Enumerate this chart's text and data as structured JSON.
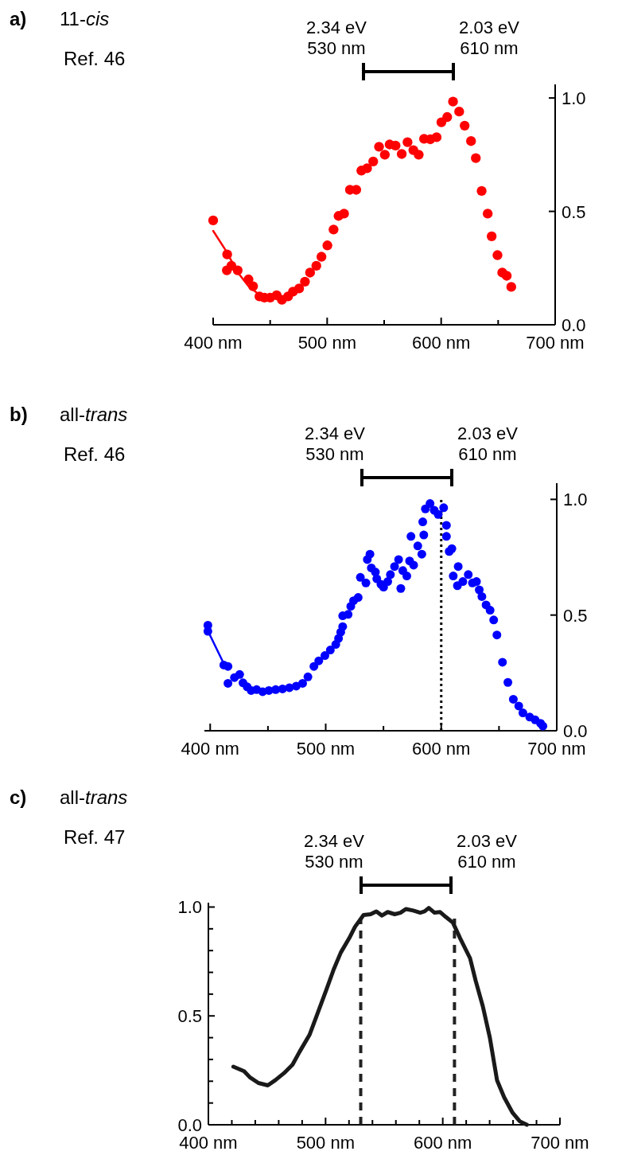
{
  "chart_data": [
    {
      "type": "scatter",
      "title": "a) 11-cis",
      "annotations": [
        "Ref. 46",
        "2.34 eV\n530 nm",
        "2.03 eV\n610 nm"
      ],
      "xlim": [
        400,
        700
      ],
      "xticks": [
        {
          "value": 400,
          "label": "400 nm"
        },
        {
          "value": 450,
          "label": null
        },
        {
          "value": 500,
          "label": "500 nm"
        },
        {
          "value": 550,
          "label": null
        },
        {
          "value": 600,
          "label": "600 nm"
        },
        {
          "value": 650,
          "label": null
        },
        {
          "value": 700,
          "label": "700 nm"
        }
      ],
      "ylim": [
        0,
        1.06
      ],
      "yticks": [
        {
          "value": 0,
          "label": "0.0"
        },
        {
          "value": 0.5,
          "label": "0.5"
        },
        {
          "value": 1,
          "label": "1.0"
        }
      ],
      "series": [
        {
          "type": "scatter",
          "marker": "circle",
          "color": "#ff0000",
          "x": [
            400,
            412.3,
            412,
            416,
            421.5,
            431,
            435,
            440.6,
            445,
            450,
            455.7,
            460.3,
            465.7,
            470,
            475.4,
            480.5,
            485,
            490.5,
            495,
            500.2,
            505.6,
            510,
            514.8,
            520,
            525.5,
            530,
            535,
            540.4,
            545.5,
            550.6,
            554.8,
            560,
            565.4,
            570.5,
            575.6,
            580.3,
            585,
            590.5,
            596,
            600.2,
            605.3,
            610.4,
            615.8,
            620.6,
            626.2,
            630.4,
            635.5,
            640.8,
            644.3,
            649.4,
            653.6,
            657.5,
            661.5
          ],
          "values": [
            0.46,
            0.31,
            0.24,
            0.26,
            0.24,
            0.2,
            0.17,
            0.125,
            0.12,
            0.12,
            0.13,
            0.11,
            0.125,
            0.146,
            0.16,
            0.19,
            0.23,
            0.26,
            0.3,
            0.35,
            0.42,
            0.48,
            0.49,
            0.595,
            0.595,
            0.68,
            0.69,
            0.72,
            0.785,
            0.75,
            0.795,
            0.79,
            0.753,
            0.805,
            0.77,
            0.75,
            0.82,
            0.818,
            0.827,
            0.893,
            0.916,
            0.984,
            0.94,
            0.878,
            0.81,
            0.735,
            0.59,
            0.49,
            0.39,
            0.307,
            0.23,
            0.216,
            0.167
          ]
        },
        {
          "type": "line",
          "color": "#ff0000",
          "x": [
            400,
            410.4,
            422,
            431,
            440.6
          ],
          "values": [
            0.414,
            0.333,
            0.228,
            0.17,
            0.132
          ]
        }
      ]
    },
    {
      "type": "scatter",
      "title": "b) all-trans",
      "annotations": [
        "Ref. 46",
        "2.34 eV\n530 nm",
        "2.03 eV\n610 nm"
      ],
      "ref_lines": [
        {
          "axis": "x",
          "value": 600,
          "color": "#000000",
          "line_style": "dotted"
        }
      ],
      "xlim": [
        395,
        700
      ],
      "xticks": [
        {
          "value": 400,
          "label": "400 nm"
        },
        {
          "value": 450,
          "label": null
        },
        {
          "value": 500,
          "label": "500 nm"
        },
        {
          "value": 550,
          "label": null
        },
        {
          "value": 600,
          "label": "600 nm"
        },
        {
          "value": 650,
          "label": null
        },
        {
          "value": 700,
          "label": "700 nm"
        }
      ],
      "ylim": [
        0,
        1.07
      ],
      "yticks": [
        {
          "value": 0,
          "label": "0.0"
        },
        {
          "value": 0.5,
          "label": "0.5"
        },
        {
          "value": 1,
          "label": "1.0"
        }
      ],
      "series": [
        {
          "type": "scatter",
          "marker": "circle",
          "color": "#0000ff",
          "x": [
            398,
            398,
            411.8,
            415.4,
            415.4,
            421,
            425.5,
            428.4,
            432,
            435.5,
            440.2,
            445.4,
            450.8,
            456.7,
            462.6,
            468.6,
            474.5,
            480,
            484.6,
            489.8,
            494,
            499.3,
            504,
            508.7,
            511.1,
            513,
            514.7,
            514.7,
            519.4,
            521.7,
            524.1,
            528.1,
            530,
            534.8,
            536,
            538.3,
            539.5,
            543,
            544.2,
            547.8,
            550.1,
            553.7,
            556,
            559.6,
            563.1,
            565,
            566.7,
            570.2,
            572.6,
            573.8,
            576.1,
            579.7,
            583.2,
            584,
            584.9,
            586.3,
            590.3,
            593.9,
            597.4,
            602.1,
            604.5,
            604.5,
            606.9,
            609.2,
            610.4,
            614,
            614.7,
            618.7,
            623.4,
            627,
            630.5,
            632.9,
            635.2,
            638.8,
            642.3,
            645.4,
            648.2,
            653,
            657.7,
            662.4,
            667.1,
            670.7,
            676.6,
            681.3,
            686,
            688
          ],
          "values": [
            0.456,
            0.43,
            0.284,
            0.278,
            0.205,
            0.23,
            0.243,
            0.207,
            0.19,
            0.174,
            0.178,
            0.169,
            0.174,
            0.178,
            0.181,
            0.186,
            0.193,
            0.205,
            0.233,
            0.278,
            0.302,
            0.325,
            0.349,
            0.373,
            0.399,
            0.426,
            0.45,
            0.497,
            0.503,
            0.538,
            0.562,
            0.576,
            0.663,
            0.639,
            0.74,
            0.763,
            0.704,
            0.686,
            0.657,
            0.633,
            0.621,
            0.645,
            0.675,
            0.71,
            0.74,
            0.615,
            0.692,
            0.669,
            0.734,
            0.84,
            0.716,
            0.799,
            0.763,
            0.903,
            0.846,
            0.959,
            0.982,
            0.953,
            0.935,
            0.964,
            0.888,
            0.84,
            0.775,
            0.787,
            0.669,
            0.627,
            0.71,
            0.645,
            0.675,
            0.639,
            0.645,
            0.609,
            0.58,
            0.544,
            0.521,
            0.479,
            0.414,
            0.296,
            0.209,
            0.136,
            0.107,
            0.077,
            0.059,
            0.047,
            0.032,
            0.02
          ]
        },
        {
          "type": "line",
          "color": "#0000ff",
          "x": [
            398,
            411.8
          ],
          "values": [
            0.432,
            0.29
          ]
        }
      ]
    },
    {
      "type": "line",
      "title": "c) all-trans",
      "annotations": [
        "Ref. 47",
        "2.34 eV\n530 nm",
        "2.03 eV\n610 nm"
      ],
      "ref_lines": [
        {
          "axis": "x",
          "value": 530,
          "color": "#222222",
          "line_style": "dashed"
        },
        {
          "axis": "x",
          "value": 610,
          "color": "#222222",
          "line_style": "dashed"
        }
      ],
      "xlim": [
        400,
        700
      ],
      "xticks": [
        {
          "value": 400,
          "label": "400 nm"
        },
        {
          "value": 420,
          "label": null
        },
        {
          "value": 440,
          "label": null
        },
        {
          "value": 460,
          "label": null
        },
        {
          "value": 480,
          "label": null
        },
        {
          "value": 500,
          "label": "500 nm"
        },
        {
          "value": 520,
          "label": null
        },
        {
          "value": 540,
          "label": null
        },
        {
          "value": 560,
          "label": null
        },
        {
          "value": 580,
          "label": null
        },
        {
          "value": 600,
          "label": "600 nm"
        },
        {
          "value": 620,
          "label": null
        },
        {
          "value": 640,
          "label": null
        },
        {
          "value": 660,
          "label": null
        },
        {
          "value": 680,
          "label": null
        },
        {
          "value": 700,
          "label": "700 nm"
        }
      ],
      "ylim": [
        0,
        1.02
      ],
      "yticks": [
        {
          "value": 0,
          "label": "0.0"
        },
        {
          "value": 0.1,
          "label": null
        },
        {
          "value": 0.2,
          "label": null
        },
        {
          "value": 0.3,
          "label": null
        },
        {
          "value": 0.4,
          "label": null
        },
        {
          "value": 0.5,
          "label": "0.5"
        },
        {
          "value": 0.6,
          "label": null
        },
        {
          "value": 0.7,
          "label": null
        },
        {
          "value": 0.8,
          "label": null
        },
        {
          "value": 0.9,
          "label": null
        },
        {
          "value": 1,
          "label": "1.0"
        }
      ],
      "series": [
        {
          "color": "#1a1a1a",
          "x": [
            421.3,
            430.5,
            435.4,
            442.7,
            450.7,
            457.2,
            464.5,
            471.8,
            477.8,
            486.3,
            493.6,
            500.8,
            506.9,
            513,
            520.2,
            525.1,
            532.4,
            538.4,
            543.3,
            548.1,
            553,
            559,
            563.9,
            568.7,
            574.8,
            580.8,
            584.5,
            588.1,
            593,
            597.8,
            602.7,
            608.7,
            614.8,
            623.3,
            628.1,
            634.2,
            640.2,
            646.3,
            652.4,
            659.6,
            665.7,
            671.8
          ],
          "values": [
            0.267,
            0.246,
            0.218,
            0.192,
            0.181,
            0.205,
            0.237,
            0.276,
            0.335,
            0.413,
            0.518,
            0.622,
            0.713,
            0.791,
            0.857,
            0.909,
            0.963,
            0.967,
            0.98,
            0.961,
            0.977,
            0.967,
            0.974,
            0.991,
            0.984,
            0.974,
            0.98,
            0.996,
            0.974,
            0.977,
            0.954,
            0.928,
            0.857,
            0.765,
            0.661,
            0.544,
            0.4,
            0.205,
            0.126,
            0.055,
            0.016,
            0
          ]
        }
      ]
    }
  ]
}
